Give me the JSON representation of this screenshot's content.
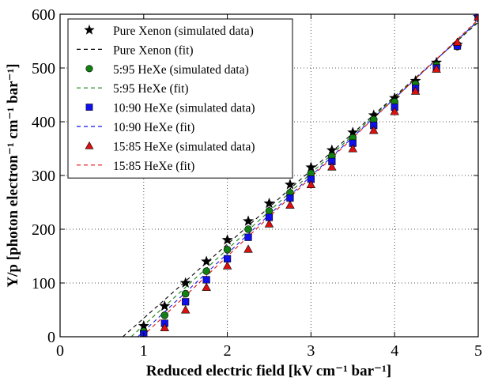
{
  "chart_data": {
    "type": "scatter",
    "xlabel": "Reduced electric field [kV cm⁻¹ bar⁻¹]",
    "ylabel": "Y/p [photon electron⁻¹ cm⁻¹ bar⁻¹]",
    "xlim": [
      0,
      5
    ],
    "ylim": [
      0,
      600
    ],
    "xticks": [
      "0",
      "1",
      "2",
      "3",
      "4",
      "5"
    ],
    "yticks": [
      "0",
      "100",
      "200",
      "300",
      "400",
      "500",
      "600"
    ],
    "xtick_values": [
      0,
      1,
      2,
      3,
      4,
      5
    ],
    "ytick_values": [
      0,
      100,
      200,
      300,
      400,
      500,
      600
    ],
    "grid": true,
    "legend_position": "top-left",
    "x": [
      1.0,
      1.25,
      1.5,
      1.75,
      2.0,
      2.25,
      2.5,
      2.75,
      3.0,
      3.25,
      3.5,
      3.75,
      4.0,
      4.25,
      4.5,
      4.75,
      5.0
    ],
    "series": [
      {
        "name": "Pure Xenon (simulated data)",
        "fit_name": "Pure Xenon (fit)",
        "marker": "star",
        "color": "#000000",
        "y": [
          20,
          57,
          100,
          140,
          180,
          215,
          248,
          283,
          315,
          347,
          380,
          412,
          444,
          476,
          510,
          543,
          595
        ],
        "fit": [
          [
            0.75,
            0
          ],
          [
            5.0,
            585
          ]
        ]
      },
      {
        "name": "5:95 HeXe (simulated data)",
        "fit_name": "5:95 HeXe (fit)",
        "marker": "circle",
        "color": "#128012",
        "y": [
          10,
          40,
          80,
          122,
          162,
          200,
          234,
          268,
          304,
          336,
          370,
          404,
          437,
          470,
          505,
          540,
          595
        ],
        "fit": [
          [
            0.85,
            0
          ],
          [
            5.0,
            587
          ]
        ]
      },
      {
        "name": "10:90 HeXe (simulated data)",
        "fit_name": "10:90 HeXe (fit)",
        "marker": "square",
        "color": "#1010ee",
        "y": [
          5,
          25,
          65,
          106,
          145,
          185,
          222,
          258,
          293,
          326,
          360,
          393,
          427,
          462,
          500,
          541,
          595
        ],
        "fit": [
          [
            0.93,
            0
          ],
          [
            5.0,
            588
          ]
        ]
      },
      {
        "name": "15:85 HeXe (simulated data)",
        "fit_name": "15:85 HeXe (fit)",
        "marker": "triangle",
        "color": "#dd1010",
        "y": [
          -5,
          17,
          50,
          92,
          132,
          163,
          210,
          245,
          283,
          316,
          350,
          384,
          419,
          457,
          498,
          548,
          595
        ],
        "fit": [
          [
            0.98,
            0
          ],
          [
            5.0,
            590
          ]
        ]
      }
    ]
  }
}
